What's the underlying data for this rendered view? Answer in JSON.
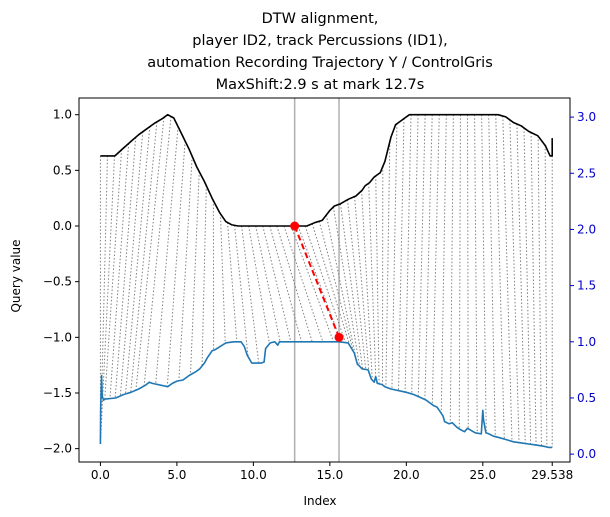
{
  "chart_data": {
    "type": "line",
    "title_lines": [
      "DTW alignment,",
      "player ID2, track Percussions (ID1),",
      "automation Recording Trajectory Y / ControlGris",
      "MaxShift:2.9 s at mark 12.7s"
    ],
    "xlabel": "Index",
    "ylabel": "Query value",
    "xlim": [
      -1.4,
      30.7
    ],
    "ylim": [
      -2.12,
      1.15
    ],
    "ylim_right": [
      -0.07,
      3.17
    ],
    "x_ticks": [
      0.0,
      5.0,
      10.0,
      15.0,
      20.0,
      25.0,
      29.538
    ],
    "x_tick_labels": [
      "0.0",
      "5.0",
      "10.0",
      "15.0",
      "20.0",
      "25.0",
      "29.538"
    ],
    "y_ticks": [
      1.0,
      0.5,
      0.0,
      -0.5,
      -1.0,
      -1.5,
      -2.0
    ],
    "y_tick_labels": [
      "1.0",
      "0.5",
      "0.0",
      "−0.5",
      "−1.0",
      "−1.5",
      "−2.0"
    ],
    "y_ticks_right": [
      3.0,
      2.5,
      2.0,
      1.5,
      1.0,
      0.5,
      0.0
    ],
    "y_tick_labels_right": [
      "3.0",
      "2.5",
      "2.0",
      "1.5",
      "1.0",
      "0.5",
      "0.0"
    ],
    "vlines": [
      12.7,
      15.6
    ],
    "max_shift": {
      "query_x": 12.7,
      "query_y": 0.0,
      "ref_x": 15.6,
      "ref_y": -1.0
    },
    "series": [
      {
        "color": "#000000",
        "axis": "left",
        "x": [
          0,
          0.95,
          1.5,
          2,
          2.5,
          3,
          3.5,
          4,
          4.4,
          4.8,
          5.3,
          5.8,
          6.3,
          6.8,
          7.3,
          7.8,
          8.2,
          8.6,
          9,
          10,
          11,
          12.7,
          13,
          13.5,
          14,
          14.5,
          15,
          15.3,
          15.7,
          16.2,
          16.7,
          17.1,
          17.3,
          17.6,
          17.9,
          18.3,
          18.6,
          19,
          19.3,
          19.6,
          19.9,
          20.2,
          20.8,
          22,
          23,
          24,
          25,
          26,
          26.5,
          27,
          27.5,
          28,
          28.6,
          29.1,
          29.4,
          29.538,
          29.538
        ],
        "y": [
          0.63,
          0.63,
          0.7,
          0.76,
          0.82,
          0.87,
          0.92,
          0.96,
          1.0,
          0.97,
          0.83,
          0.69,
          0.53,
          0.4,
          0.25,
          0.12,
          0.04,
          0.01,
          0.0,
          0.0,
          0.0,
          0.0,
          0.0,
          0.0,
          0.03,
          0.05,
          0.14,
          0.18,
          0.2,
          0.24,
          0.27,
          0.32,
          0.36,
          0.39,
          0.44,
          0.48,
          0.58,
          0.8,
          0.91,
          0.94,
          0.97,
          1.0,
          1.0,
          1.0,
          1.0,
          1.0,
          1.0,
          1.0,
          0.98,
          0.93,
          0.9,
          0.85,
          0.81,
          0.72,
          0.63,
          0.63,
          0.79
        ]
      },
      {
        "color": "#1f77b4",
        "axis": "right",
        "x": [
          0,
          0.02,
          0.08,
          0.12,
          0.2,
          0.3,
          1,
          1.5,
          2,
          2.5,
          2.9,
          3.2,
          3.4,
          4.4,
          4.7,
          5,
          5.4,
          5.8,
          6.2,
          6.5,
          6.8,
          7,
          7.3,
          7.5,
          8.2,
          8.7,
          9.2,
          9.4,
          9.6,
          9.9,
          10.5,
          10.7,
          10.8,
          11.1,
          11.4,
          11.6,
          11.7,
          12.7,
          15.6,
          16.2,
          16.6,
          16.8,
          16.9,
          17.1,
          17.5,
          17.7,
          17.9,
          18,
          18.1,
          18.4,
          18.6,
          19,
          20,
          20.5,
          21,
          21.3,
          21.5,
          21.8,
          22,
          22.2,
          22.4,
          22.5,
          22.8,
          23,
          23.3,
          23.5,
          23.8,
          24,
          24.5,
          24.9,
          25,
          25.05,
          25.2,
          25.4,
          25.7,
          26,
          26.5,
          27,
          27.5,
          28,
          28.5,
          29,
          29.3,
          29.538
        ],
        "y": [
          0.09,
          0.42,
          0.7,
          0.52,
          0.48,
          0.49,
          0.5,
          0.53,
          0.55,
          0.58,
          0.61,
          0.64,
          0.63,
          0.6,
          0.63,
          0.65,
          0.66,
          0.7,
          0.73,
          0.76,
          0.81,
          0.86,
          0.92,
          0.93,
          0.99,
          1.0,
          1.0,
          0.96,
          0.88,
          0.81,
          0.81,
          0.82,
          0.94,
          0.99,
          1.0,
          0.97,
          1.0,
          1.0,
          1.0,
          0.99,
          0.9,
          0.8,
          0.79,
          0.76,
          0.75,
          0.67,
          0.64,
          0.69,
          0.63,
          0.62,
          0.6,
          0.58,
          0.55,
          0.53,
          0.5,
          0.48,
          0.46,
          0.43,
          0.42,
          0.38,
          0.34,
          0.29,
          0.27,
          0.28,
          0.24,
          0.22,
          0.2,
          0.23,
          0.19,
          0.18,
          0.39,
          0.3,
          0.19,
          0.18,
          0.16,
          0.15,
          0.13,
          0.11,
          0.1,
          0.09,
          0.08,
          0.07,
          0.06,
          0.06
        ]
      }
    ]
  }
}
